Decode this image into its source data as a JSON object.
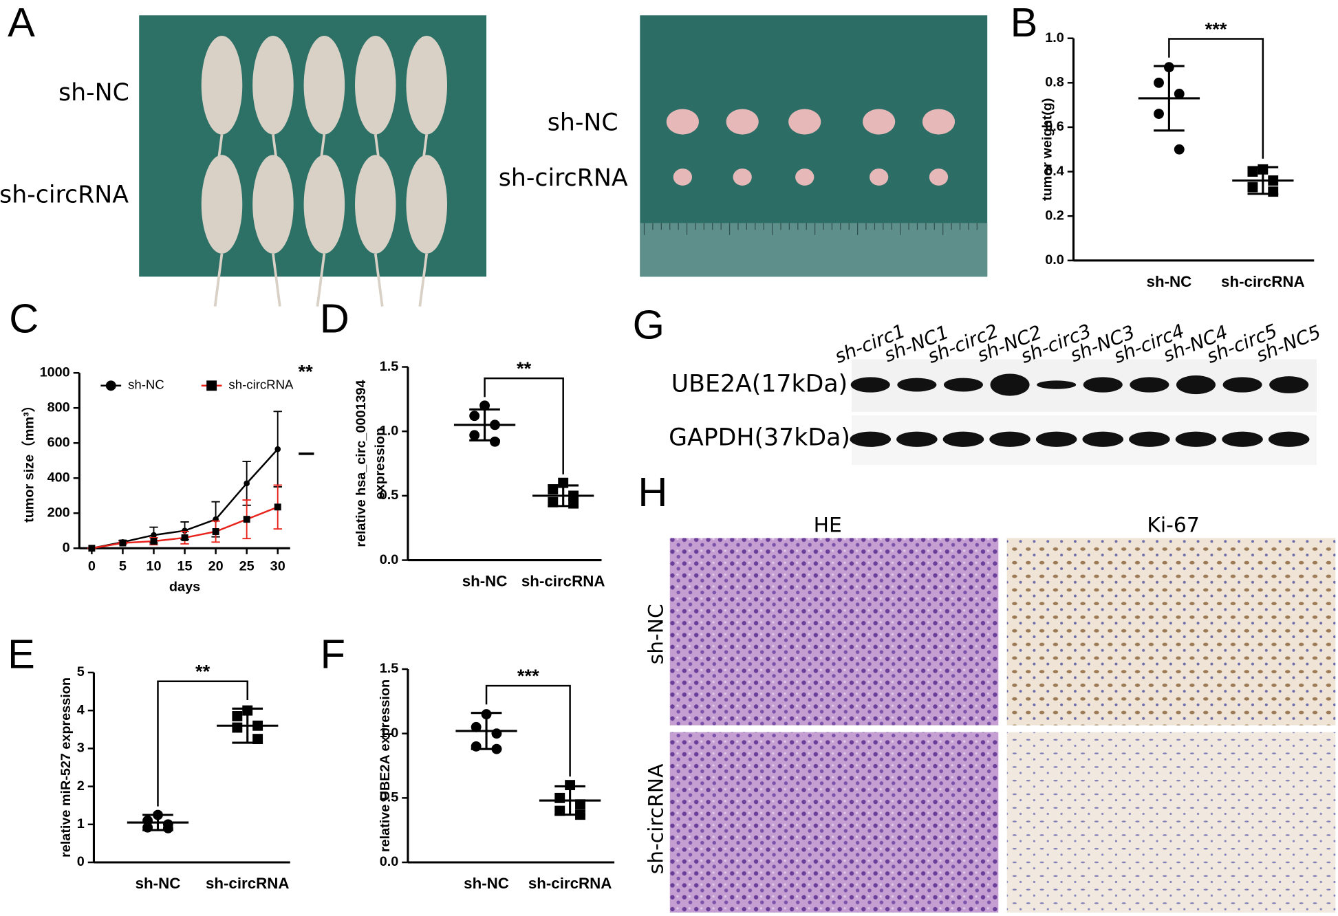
{
  "panel_labels": [
    "A",
    "B",
    "C",
    "D",
    "E",
    "F",
    "G",
    "H"
  ],
  "panel_a": {
    "mice_rows": [
      "sh-NC",
      "sh-circRNA"
    ],
    "tumor_rows": [
      "sh-NC",
      "sh-circRNA"
    ]
  },
  "chart_data": [
    {
      "type": "dot",
      "ylabel": "tumor weight(g)",
      "categories": [
        "sh-NC",
        "sh-circRNA"
      ],
      "markers": [
        "circle",
        "square"
      ],
      "points": [
        [
          0.87,
          0.8,
          0.75,
          0.66,
          0.5
        ],
        [
          0.41,
          0.4,
          0.36,
          0.33,
          0.31
        ]
      ],
      "means": [
        0.73,
        0.36
      ],
      "errors": [
        0.145,
        0.06
      ],
      "significance": "***",
      "ylim": [
        0,
        1
      ],
      "yticks": [
        {
          "value": 0,
          "label": "0.0"
        },
        0.2,
        0.4,
        0.6,
        0.8,
        {
          "value": 1,
          "label": "1.0"
        }
      ],
      "color": "#000000"
    },
    {
      "type": "line",
      "xlabel": "days",
      "ylabel": "tumor size（mm³）",
      "x": [
        0,
        5,
        10,
        15,
        20,
        25,
        30
      ],
      "xlim": [
        -2,
        32
      ],
      "xticks": [
        0,
        5,
        10,
        15,
        20,
        25,
        30
      ],
      "ylim": [
        0,
        1000
      ],
      "yticks": [
        0,
        200,
        400,
        600,
        800,
        1000
      ],
      "series": [
        {
          "name": "sh-NC",
          "color": "#000000",
          "marker": "circle",
          "values": [
            0,
            35,
            75,
            100,
            165,
            370,
            565
          ],
          "errors": [
            0,
            10,
            45,
            50,
            100,
            125,
            215
          ]
        },
        {
          "name": "sh-circRNA",
          "color": "#e8221b",
          "marker": "square",
          "values": [
            0,
            30,
            40,
            60,
            95,
            165,
            235
          ],
          "errors": [
            0,
            5,
            20,
            35,
            60,
            110,
            125
          ]
        }
      ],
      "significance": "**"
    },
    {
      "type": "dot",
      "ylabel": [
        "relative hsa_circ_0001394",
        "expression"
      ],
      "categories": [
        "sh-NC",
        "sh-circRNA"
      ],
      "markers": [
        "circle",
        "square"
      ],
      "points": [
        [
          1.2,
          1.12,
          1.05,
          0.97,
          0.92
        ],
        [
          0.6,
          0.55,
          0.5,
          0.45,
          0.44
        ]
      ],
      "means": [
        1.05,
        0.5
      ],
      "errors": [
        0.12,
        0.08
      ],
      "significance": "**",
      "ylim": [
        0,
        1.5
      ],
      "yticks": [
        {
          "value": 0,
          "label": "0.0"
        },
        0.5,
        {
          "value": 1,
          "label": "1.0"
        },
        1.5
      ],
      "color": "#000000"
    },
    {
      "type": "dot",
      "ylabel": "relative miR-527 expression",
      "categories": [
        "sh-NC",
        "sh-circRNA"
      ],
      "markers": [
        "circle",
        "square"
      ],
      "points": [
        [
          1.25,
          1.1,
          1.0,
          0.92,
          0.9
        ],
        [
          4.0,
          3.85,
          3.6,
          3.55,
          3.25
        ]
      ],
      "means": [
        1.05,
        3.6
      ],
      "errors": [
        0.2,
        0.45
      ],
      "significance": "**",
      "ylim": [
        0,
        5
      ],
      "yticks": [
        0,
        1,
        2,
        3,
        4,
        5
      ],
      "color": "#000000"
    },
    {
      "type": "dot",
      "ylabel": "relative UBE2A  expression",
      "categories": [
        "sh-NC",
        "sh-circRNA"
      ],
      "markers": [
        "circle",
        "square"
      ],
      "points": [
        [
          1.15,
          1.05,
          1.0,
          0.9,
          0.88
        ],
        [
          0.6,
          0.5,
          0.45,
          0.4,
          0.37
        ]
      ],
      "means": [
        1.02,
        0.48
      ],
      "errors": [
        0.14,
        0.11
      ],
      "significance": "***",
      "ylim": [
        0,
        1.5
      ],
      "yticks": [
        {
          "value": 0,
          "label": "0.0"
        },
        0.5,
        {
          "value": 1,
          "label": "1.0"
        },
        1.5
      ],
      "color": "#000000"
    }
  ],
  "panel_g": {
    "lanes": [
      "sh-circ1",
      "sh-NC1",
      "sh-circ2",
      "sh-NC2",
      "sh-circ3",
      "sh-NC3",
      "sh-circ4",
      "sh-NC4",
      "sh-circ5",
      "sh-NC5"
    ],
    "rows": [
      "UBE2A(17kDa)",
      "GAPDH(37kDa)"
    ]
  },
  "panel_h": {
    "columns": [
      "HE",
      "Ki-67"
    ],
    "rows": [
      "sh-NC",
      "sh-circRNA"
    ]
  }
}
